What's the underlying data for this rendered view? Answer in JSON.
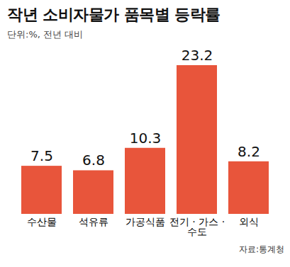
{
  "chart_data": {
    "type": "bar",
    "title": "작년 소비자물가 품목별 등락률",
    "subtitle": "단위:%, 전년 대비",
    "categories": [
      "수산물",
      "석유류",
      "가공식품",
      "전기 · 가스 · 수도",
      "외식"
    ],
    "values": [
      7.5,
      6.8,
      10.3,
      23.2,
      8.2
    ],
    "color": "#e8553b",
    "data_labels": true,
    "tick_labels": "x",
    "grid": false,
    "source": "자료:통계청"
  }
}
